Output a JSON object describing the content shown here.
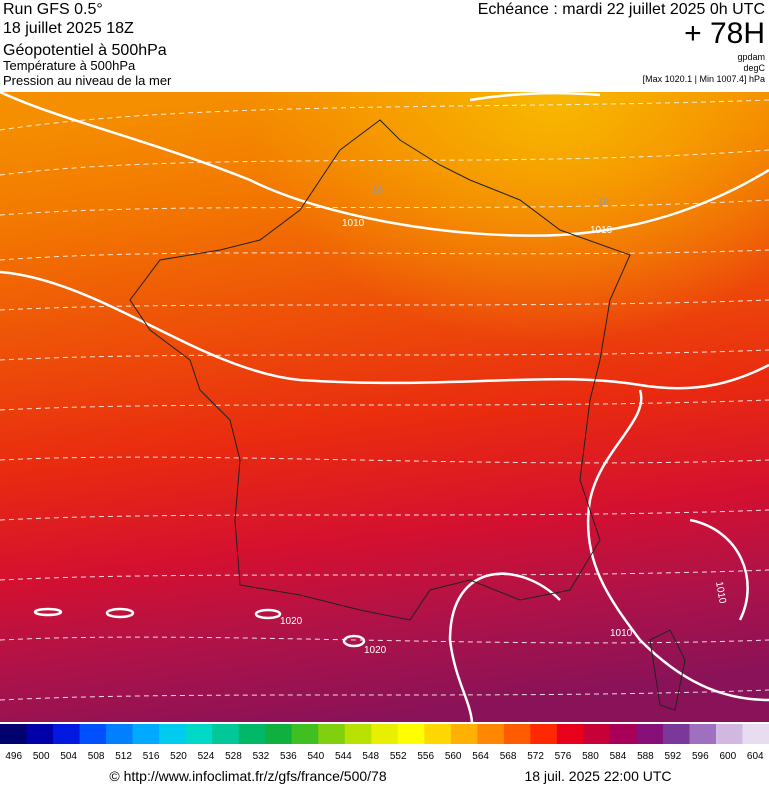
{
  "header": {
    "run": "Run GFS 0.5°",
    "date": "18 juillet 2025 18Z",
    "title": "Géopotentiel à 500hPa",
    "subtitle1": "Température à 500hPa",
    "subtitle2": "Pression au niveau de la mer",
    "echeance": "Echéance : mardi 22 juillet 2025 0h UTC",
    "lead": "+ 78H",
    "unit1": "gpdam",
    "unit2": "degC",
    "range": "[Max 1020.1 | Min 1007.4] hPa"
  },
  "map": {
    "contour_labels": [
      "1010",
      "1010",
      "1020",
      "1020",
      "1010",
      "1010",
      "16",
      "16"
    ]
  },
  "legend": {
    "labels": [
      496,
      500,
      504,
      508,
      512,
      516,
      520,
      524,
      528,
      532,
      536,
      540,
      544,
      548,
      552,
      556,
      560,
      564,
      568,
      572,
      576,
      580,
      584,
      588,
      592,
      596,
      600,
      604
    ]
  },
  "footer": {
    "url": "© http://www.infoclimat.fr/z/gfs/france/500/78",
    "time": "18 juil. 2025 22:00 UTC"
  }
}
